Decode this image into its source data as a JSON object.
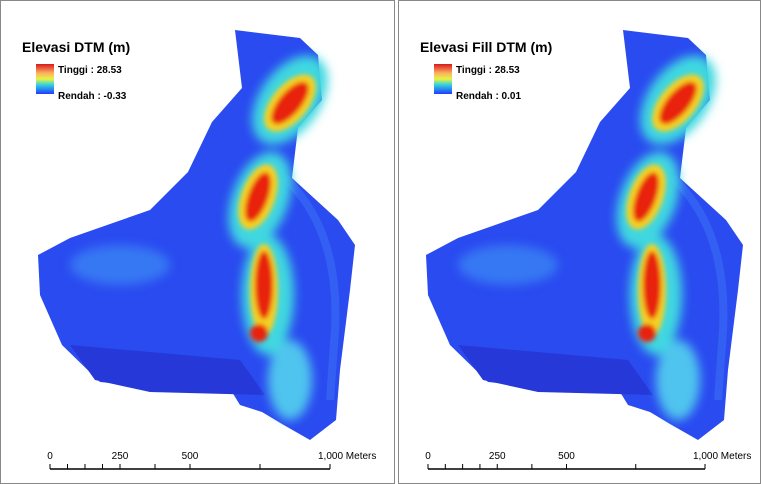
{
  "panels": [
    {
      "title": "Elevasi DTM (m)",
      "legend": {
        "high": "Tinggi : 28.53",
        "low": "Rendah : -0.33"
      },
      "scale": [
        "0",
        "250",
        "500",
        "1,000 Meters"
      ]
    },
    {
      "title": "Elevasi Fill DTM (m)",
      "legend": {
        "high": "Tinggi : 28.53",
        "low": "Rendah : 0.01"
      },
      "scale": [
        "0",
        "250",
        "500",
        "1,000 Meters"
      ]
    }
  ]
}
